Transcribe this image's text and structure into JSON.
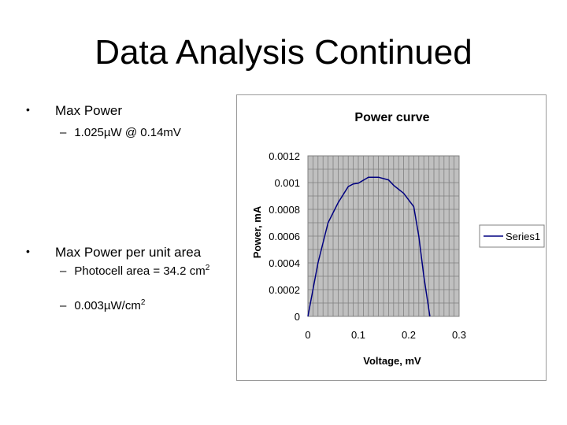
{
  "slide": {
    "title": "Data Analysis Continued",
    "bullets": [
      {
        "text": "Max Power",
        "subs": [
          {
            "text": "1.025µW @ 0.14mV"
          }
        ]
      },
      {
        "text": "Max Power per unit area",
        "subs": [
          {
            "text": "Photocell area = 34.2 cm",
            "sup": "2"
          },
          {
            "text": "0.003µW/cm",
            "sup": "2"
          }
        ]
      }
    ]
  },
  "chart_data": {
    "type": "line",
    "title": "Power curve",
    "xlabel": "Voltage, mV",
    "ylabel": "Power, mA",
    "xlim": [
      0,
      0.3
    ],
    "ylim": [
      0,
      0.0012
    ],
    "xticks": [
      "0",
      "0.1",
      "0.2",
      "0.3"
    ],
    "yticks": [
      "0",
      "0.0002",
      "0.0004",
      "0.0006",
      "0.0008",
      "0.001",
      "0.0012"
    ],
    "grid": true,
    "legend_position": "right",
    "plot_background": "#c0c0c0",
    "line_color": "#000080",
    "series": [
      {
        "name": "Series1",
        "x": [
          0,
          0.02,
          0.04,
          0.06,
          0.08,
          0.09,
          0.1,
          0.12,
          0.14,
          0.16,
          0.17,
          0.19,
          0.21,
          0.22,
          0.23,
          0.24,
          0.242
        ],
        "y": [
          0,
          0.0004,
          0.0007,
          0.00085,
          0.00097,
          0.00099,
          0.000995,
          0.00104,
          0.00104,
          0.00102,
          0.00098,
          0.00092,
          0.00082,
          0.0006,
          0.0003,
          5e-05,
          0
        ]
      }
    ]
  }
}
